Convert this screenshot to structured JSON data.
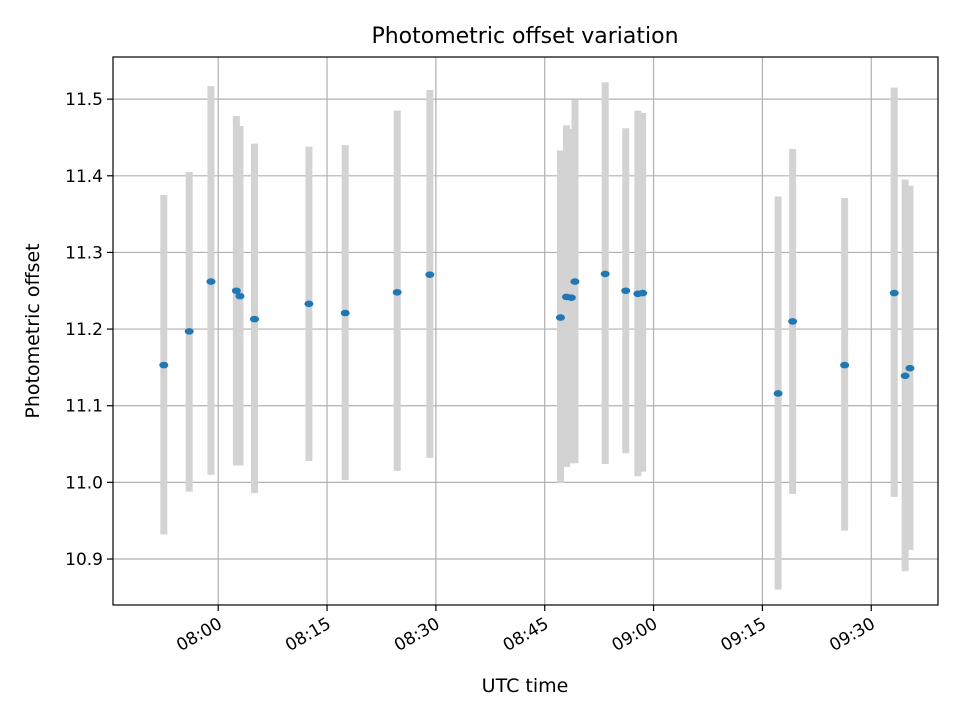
{
  "chart_data": {
    "type": "scatter",
    "title": "Photometric offset variation",
    "xlabel": "UTC time",
    "ylabel": "Photometric offset",
    "x_ticks": [
      "08:00",
      "08:15",
      "08:30",
      "08:45",
      "09:00",
      "09:15",
      "09:30"
    ],
    "x_tick_minutes": [
      480,
      495,
      510,
      525,
      540,
      555,
      570
    ],
    "xlim_minutes": [
      465.5,
      579.2
    ],
    "y_ticks": [
      "10.9",
      "11.0",
      "11.1",
      "11.2",
      "11.3",
      "11.4",
      "11.5"
    ],
    "y_tick_values": [
      10.9,
      11.0,
      11.1,
      11.2,
      11.3,
      11.4,
      11.5
    ],
    "ylim": [
      10.84,
      11.555
    ],
    "grid": true,
    "marker_color": "#1f77b4",
    "errorbar_color": "#d3d3d3",
    "series": [
      {
        "points": [
          {
            "t": "07:52:30",
            "y": 11.153,
            "lo": 10.932,
            "hi": 11.375
          },
          {
            "t": "07:56:00",
            "y": 11.197,
            "lo": 10.988,
            "hi": 11.405
          },
          {
            "t": "07:59:00",
            "y": 11.262,
            "lo": 11.01,
            "hi": 11.517
          },
          {
            "t": "08:02:30",
            "y": 11.25,
            "lo": 11.022,
            "hi": 11.478
          },
          {
            "t": "08:03:00",
            "y": 11.243,
            "lo": 11.022,
            "hi": 11.465
          },
          {
            "t": "08:05:00",
            "y": 11.213,
            "lo": 10.986,
            "hi": 11.442
          },
          {
            "t": "08:12:30",
            "y": 11.233,
            "lo": 11.028,
            "hi": 11.438
          },
          {
            "t": "08:17:30",
            "y": 11.221,
            "lo": 11.003,
            "hi": 11.44
          },
          {
            "t": "08:24:40",
            "y": 11.248,
            "lo": 11.015,
            "hi": 11.485
          },
          {
            "t": "08:29:10",
            "y": 11.271,
            "lo": 11.032,
            "hi": 11.512
          },
          {
            "t": "08:47:10",
            "y": 11.215,
            "lo": 10.999,
            "hi": 11.433
          },
          {
            "t": "08:48:00",
            "y": 11.242,
            "lo": 11.02,
            "hi": 11.466
          },
          {
            "t": "08:48:40",
            "y": 11.241,
            "lo": 11.025,
            "hi": 11.461
          },
          {
            "t": "08:49:10",
            "y": 11.262,
            "lo": 11.025,
            "hi": 11.499
          },
          {
            "t": "08:53:20",
            "y": 11.272,
            "lo": 11.024,
            "hi": 11.522
          },
          {
            "t": "08:56:10",
            "y": 11.25,
            "lo": 11.038,
            "hi": 11.462
          },
          {
            "t": "08:57:50",
            "y": 11.246,
            "lo": 11.008,
            "hi": 11.485
          },
          {
            "t": "08:58:30",
            "y": 11.247,
            "lo": 11.014,
            "hi": 11.482
          },
          {
            "t": "09:17:10",
            "y": 11.116,
            "lo": 10.86,
            "hi": 11.373
          },
          {
            "t": "09:19:10",
            "y": 11.21,
            "lo": 10.985,
            "hi": 11.435
          },
          {
            "t": "09:26:20",
            "y": 11.153,
            "lo": 10.937,
            "hi": 11.371
          },
          {
            "t": "09:33:10",
            "y": 11.247,
            "lo": 10.981,
            "hi": 11.515
          },
          {
            "t": "09:34:40",
            "y": 11.139,
            "lo": 10.884,
            "hi": 11.395
          },
          {
            "t": "09:35:20",
            "y": 11.149,
            "lo": 10.912,
            "hi": 11.387
          }
        ]
      }
    ]
  }
}
